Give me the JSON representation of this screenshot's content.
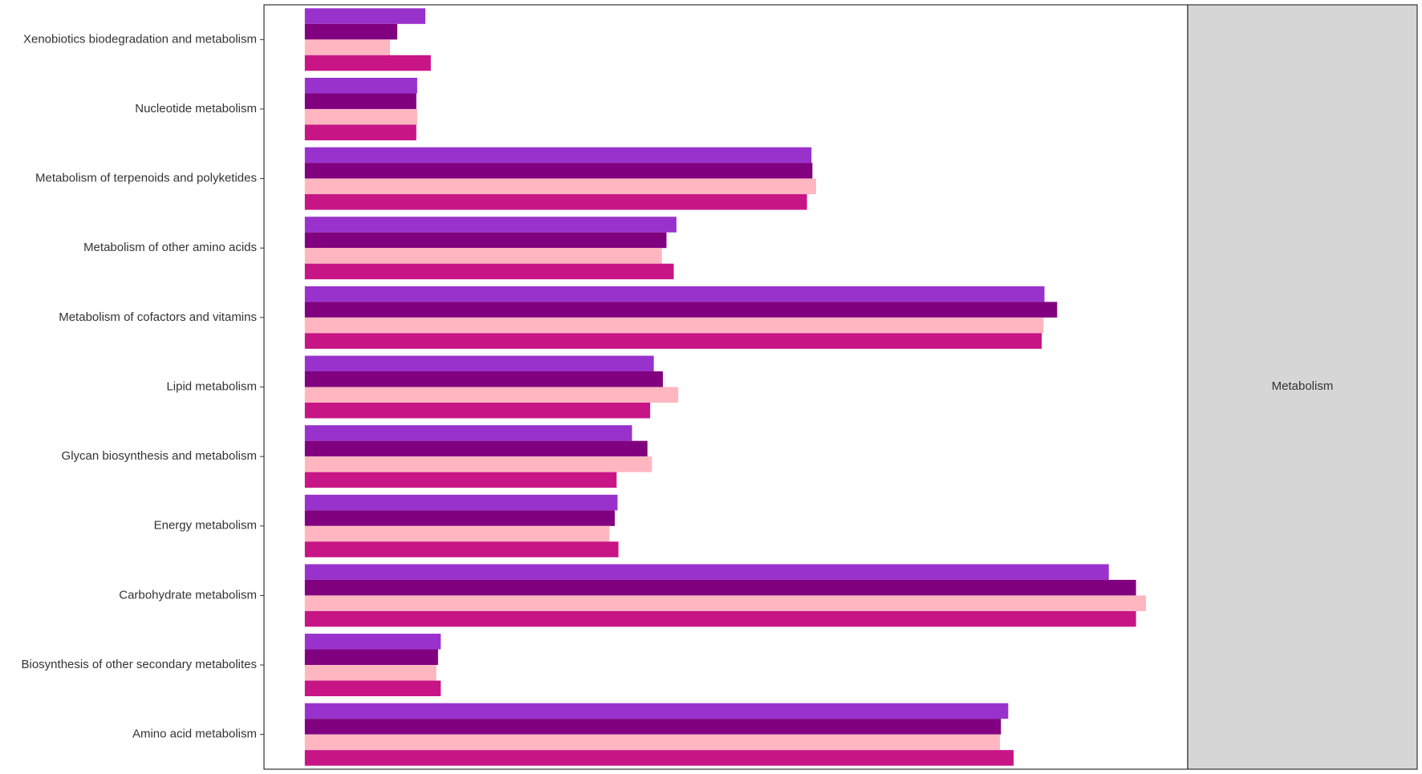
{
  "chart_data": {
    "type": "bar",
    "orientation": "horizontal",
    "categories": [
      "Xenobiotics biodegradation and metabolism",
      "Nucleotide metabolism",
      "Metabolism of terpenoids and polyketides",
      "Metabolism of other amino acids",
      "Metabolism of cofactors and vitamins",
      "Lipid metabolism",
      "Glycan biosynthesis and metabolism",
      "Energy metabolism",
      "Carbohydrate metabolism",
      "Biosynthesis of other secondary metabolites",
      "Amino acid metabolism"
    ],
    "series": [
      {
        "color": "#9932cc",
        "values": [
          133,
          124,
          559,
          410,
          816,
          385,
          361,
          345,
          887,
          150,
          776
        ]
      },
      {
        "color": "#800080",
        "values": [
          102,
          123,
          560,
          399,
          830,
          395,
          378,
          342,
          917,
          147,
          768
        ]
      },
      {
        "color": "#ffb6c1",
        "values": [
          94,
          124,
          564,
          394,
          815,
          412,
          383,
          336,
          928,
          145,
          767
        ]
      },
      {
        "color": "#c71585",
        "values": [
          139,
          123,
          554,
          407,
          813,
          381,
          344,
          346,
          917,
          150,
          782
        ]
      }
    ],
    "xlim": [
      -45,
      974
    ],
    "facet_label": "Metabolism"
  }
}
